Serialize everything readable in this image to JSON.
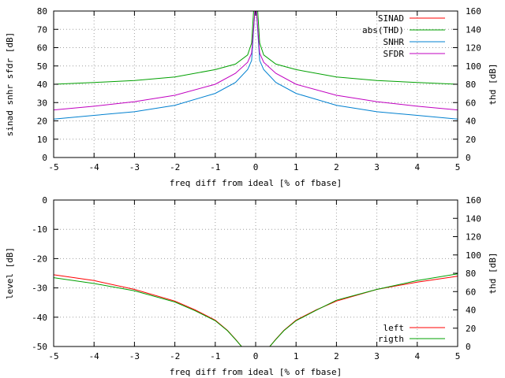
{
  "chart_data": [
    {
      "type": "line",
      "xlabel": "freq diff from ideal [% of fbase]",
      "ylabel": "sinad snhr sfdr [dB]",
      "y2label": "thd [dB]",
      "xlim": [
        -5,
        5
      ],
      "ylim": [
        0,
        80
      ],
      "y2lim": [
        0,
        160
      ],
      "xticks": [
        "-5",
        "-4",
        "-3",
        "-2",
        "-1",
        "0",
        "1",
        "2",
        "3",
        "4",
        "5"
      ],
      "yticks": [
        "0",
        "10",
        "20",
        "30",
        "40",
        "50",
        "60",
        "70",
        "80"
      ],
      "y2ticks": [
        "0",
        "20",
        "40",
        "60",
        "80",
        "100",
        "120",
        "140",
        "160"
      ],
      "grid": true,
      "legend": "top-right",
      "series": [
        {
          "name": "SINAD",
          "color": "#ff0000",
          "axis": "y",
          "x": [
            -0.05,
            0.05
          ],
          "values": [
            80,
            80
          ]
        },
        {
          "name": "abs(THD)",
          "color": "#00a000",
          "axis": "y2",
          "x": [
            -5,
            -4,
            -3,
            -2,
            -1,
            -0.5,
            -0.2,
            -0.1,
            -0.05,
            0.05,
            0.1,
            0.2,
            0.5,
            1,
            2,
            3,
            4,
            5
          ],
          "values": [
            80,
            82,
            84,
            88,
            96,
            102,
            112,
            125,
            160,
            160,
            125,
            112,
            102,
            96,
            88,
            84,
            82,
            80
          ]
        },
        {
          "name": "SNHR",
          "color": "#0080d0",
          "axis": "y",
          "x": [
            -5,
            -4,
            -3,
            -2,
            -1,
            -0.5,
            -0.2,
            -0.1,
            -0.02,
            0.02,
            0.1,
            0.2,
            0.5,
            1,
            2,
            3,
            4,
            5
          ],
          "values": [
            21,
            23,
            25,
            28.5,
            35,
            41,
            48,
            53,
            80,
            80,
            53,
            48,
            41,
            35,
            28.5,
            25,
            23,
            21
          ]
        },
        {
          "name": "SFDR",
          "color": "#c000c0",
          "axis": "y",
          "x": [
            -5,
            -4,
            -3,
            -2,
            -1,
            -0.5,
            -0.2,
            -0.1,
            -0.02,
            0.02,
            0.1,
            0.2,
            0.5,
            1,
            2,
            3,
            4,
            5
          ],
          "values": [
            26,
            28,
            30.5,
            34,
            40,
            46,
            52,
            57,
            80,
            80,
            57,
            52,
            46,
            40,
            34,
            30.5,
            28,
            26
          ]
        }
      ]
    },
    {
      "type": "line",
      "xlabel": "freq diff from ideal [% of fbase]",
      "ylabel": "level [dB]",
      "y2label": "thd [dB]",
      "xlim": [
        -5,
        5
      ],
      "ylim": [
        -50,
        0
      ],
      "y2lim": [
        0,
        160
      ],
      "xticks": [
        "-5",
        "-4",
        "-3",
        "-2",
        "-1",
        "0",
        "1",
        "2",
        "3",
        "4",
        "5"
      ],
      "yticks": [
        "-50",
        "-40",
        "-30",
        "-20",
        "-10",
        "0"
      ],
      "y2ticks": [
        "0",
        "20",
        "40",
        "60",
        "80",
        "100",
        "120",
        "140",
        "160"
      ],
      "grid": true,
      "legend": "bottom-right",
      "series": [
        {
          "name": "left",
          "color": "#ff0000",
          "axis": "y",
          "x": [
            -5,
            -4,
            -3,
            -2,
            -1.5,
            -1,
            -0.7,
            -0.5,
            -0.35,
            0.35,
            0.5,
            0.7,
            1,
            1.5,
            2,
            3,
            4,
            5
          ],
          "values": [
            -25.5,
            -27.5,
            -30.5,
            -34.5,
            -37.5,
            -41,
            -44.5,
            -47.5,
            -50,
            -50,
            -47.5,
            -44.5,
            -41,
            -37.5,
            -34.5,
            -30.5,
            -28,
            -26
          ]
        },
        {
          "name": "rigth",
          "color": "#00a000",
          "axis": "y",
          "x": [
            -5,
            -4,
            -3,
            -2,
            -1.5,
            -1,
            -0.7,
            -0.5,
            -0.35,
            0.35,
            0.5,
            0.7,
            1,
            1.5,
            2,
            3,
            4,
            5
          ],
          "values": [
            -26.5,
            -28.5,
            -31,
            -34.8,
            -37.8,
            -41.2,
            -44.6,
            -47.6,
            -50,
            -50,
            -47.6,
            -44.6,
            -41.2,
            -37.6,
            -34.2,
            -30.5,
            -27.5,
            -25.2
          ]
        }
      ]
    }
  ]
}
